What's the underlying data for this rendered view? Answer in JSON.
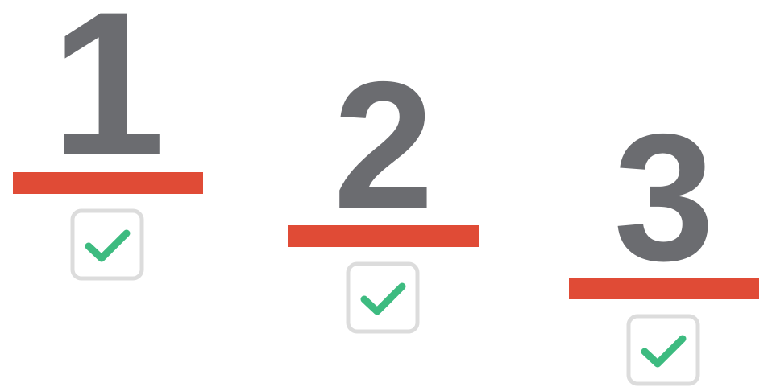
{
  "steps": [
    "1",
    "2",
    "3"
  ]
}
